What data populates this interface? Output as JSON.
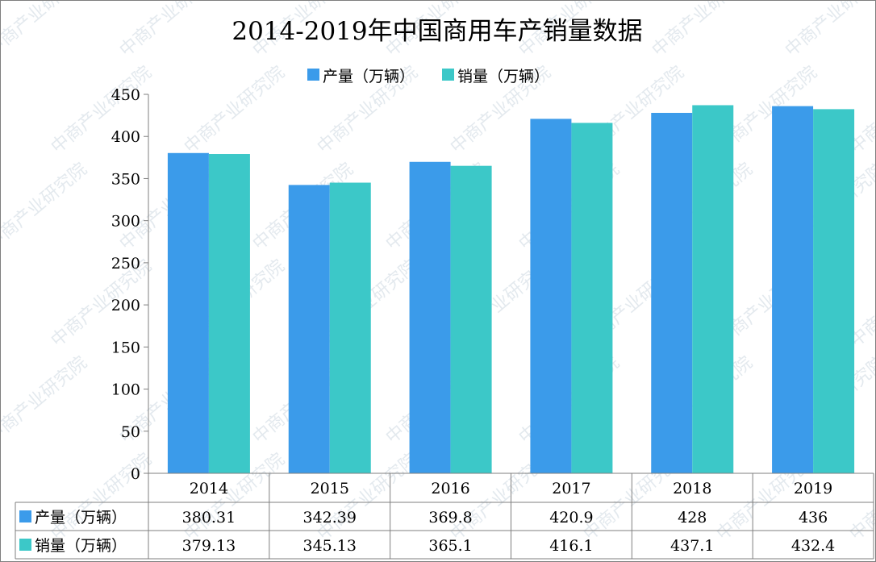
{
  "colors": {
    "production": "#3b9bea",
    "sales": "#3cc8c8"
  },
  "watermark": {
    "text": "中商产业研究院"
  },
  "chart_data": {
    "type": "bar",
    "title": "2014-2019年中国商用车产销量数据",
    "categories": [
      "2014",
      "2015",
      "2016",
      "2017",
      "2018",
      "2019"
    ],
    "series": [
      {
        "name": "产量（万辆）",
        "values": [
          380.31,
          342.39,
          369.8,
          420.9,
          428,
          436
        ],
        "labels": [
          "380.31",
          "342.39",
          "369.8",
          "420.9",
          "428",
          "436"
        ]
      },
      {
        "name": "销量（万辆）",
        "values": [
          379.13,
          345.13,
          365.1,
          416.1,
          437.1,
          432.4
        ],
        "labels": [
          "379.13",
          "345.13",
          "365.1",
          "416.1",
          "437.1",
          "432.4"
        ]
      }
    ],
    "yticks": [
      "0",
      "50",
      "100",
      "150",
      "200",
      "250",
      "300",
      "350",
      "400",
      "450"
    ],
    "ylim": [
      0,
      450
    ],
    "legend_position": "top",
    "grid": false,
    "data_table": true
  }
}
